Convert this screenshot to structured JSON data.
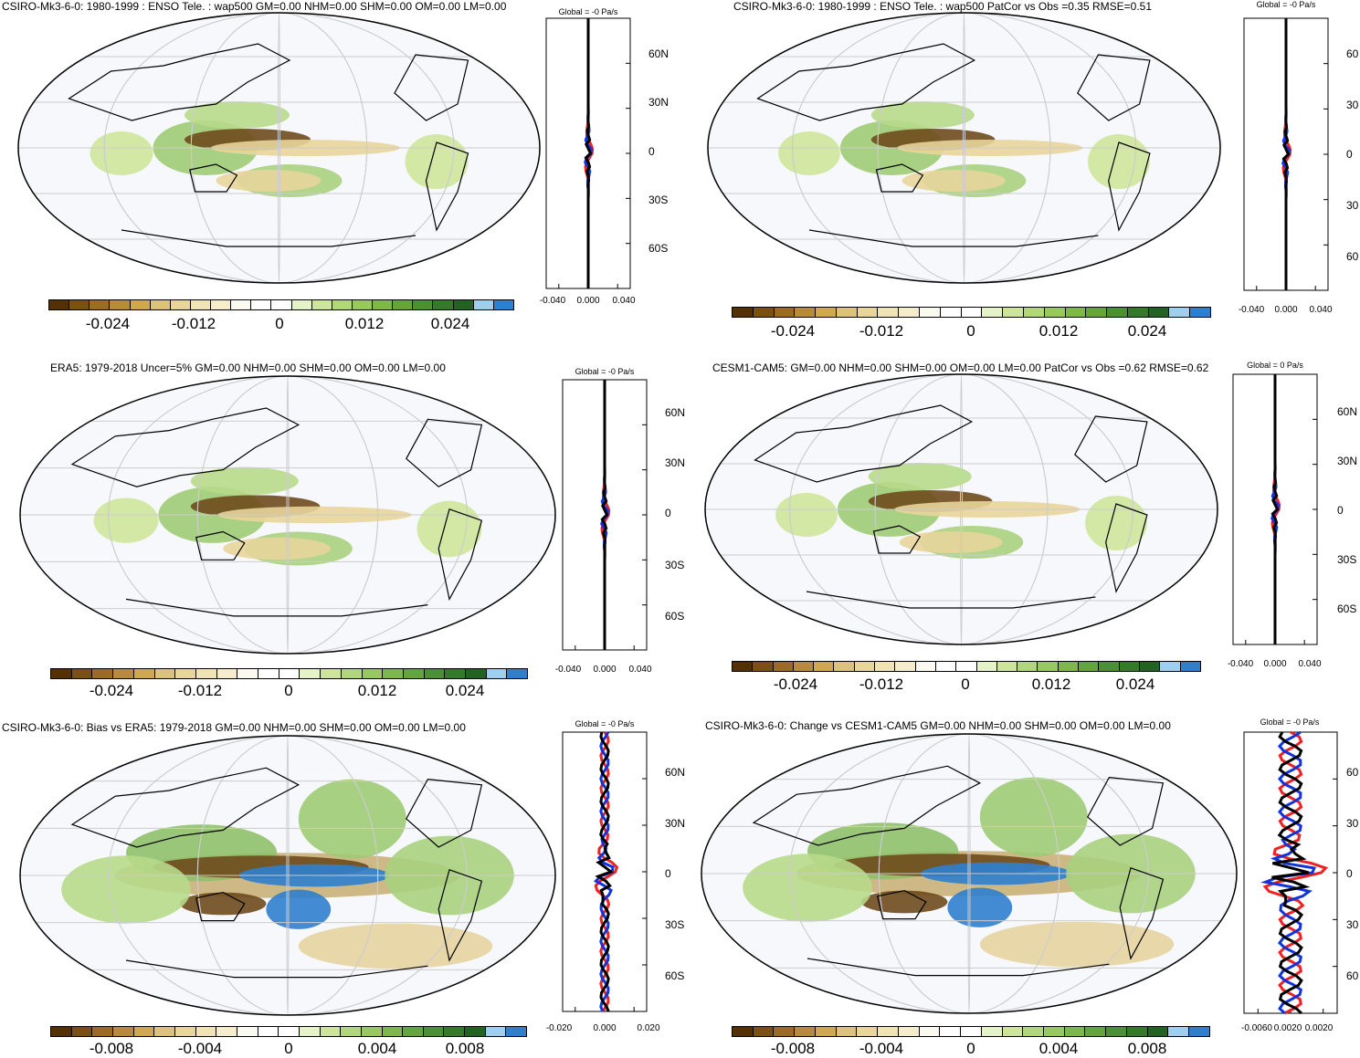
{
  "panels": [
    {
      "title": "CSIRO-Mk3-6-0: 1980-1999 : ENSO Tele. : wap500 GM=0.00 NHM=0.00 SHM=0.00 OM=0.00 LM=0.00",
      "profile_title": "Global = -0 Pa/s",
      "cbar_labels": [
        "-0.024",
        "-0.012",
        "0",
        "0.012",
        "0.024"
      ],
      "lat_labels": [
        "60N",
        "30N",
        "0",
        "30S",
        "60S"
      ],
      "x_ticks": [
        "-0.040",
        "0.000",
        "0.040"
      ]
    },
    {
      "title": "CSIRO-Mk3-6-0: 1980-1999 : ENSO Tele. : wap500 PatCor vs Obs =0.35 RMSE=0.51",
      "profile_title": "Global = -0 Pa/s",
      "cbar_labels": [
        "-0.024",
        "-0.012",
        "0",
        "0.012",
        "0.024"
      ],
      "lat_labels": [
        "60",
        "30",
        "0",
        "30",
        "60"
      ],
      "x_ticks": [
        "-0.040",
        "0.000",
        "0.040"
      ]
    },
    {
      "title": "ERA5: 1979-2018 Uncer=5% GM=0.00 NHM=0.00 SHM=0.00 OM=0.00 LM=0.00",
      "profile_title": "Global = -0 Pa/s",
      "cbar_labels": [
        "-0.024",
        "-0.012",
        "0",
        "0.012",
        "0.024"
      ],
      "lat_labels": [
        "60N",
        "30N",
        "0",
        "30S",
        "60S"
      ],
      "x_ticks": [
        "-0.040",
        "0.000",
        "0.040"
      ]
    },
    {
      "title": "CESM1-CAM5: GM=0.00 NHM=0.00 SHM=0.00 OM=0.00 LM=0.00 PatCor vs Obs =0.62 RMSE=0.62",
      "profile_title": "Global = 0 Pa/s",
      "cbar_labels": [
        "-0.024",
        "-0.012",
        "0",
        "0.012",
        "0.024"
      ],
      "lat_labels": [
        "60N",
        "30N",
        "0",
        "30S",
        "60S"
      ],
      "x_ticks": [
        "-0.040",
        "0.000",
        "0.040"
      ]
    },
    {
      "title": "CSIRO-Mk3-6-0: Bias vs ERA5: 1979-2018 GM=0.00 NHM=0.00 SHM=0.00 OM=0.00 LM=0.00",
      "profile_title": "Global = -0 Pa/s",
      "cbar_labels": [
        "-0.008",
        "-0.004",
        "0",
        "0.004",
        "0.008"
      ],
      "lat_labels": [
        "60N",
        "30N",
        "0",
        "30S",
        "60S"
      ],
      "x_ticks": [
        "-0.020",
        "0.000",
        "0.020"
      ]
    },
    {
      "title": "CSIRO-Mk3-6-0: Change vs CESM1-CAM5 GM=0.00 NHM=0.00 SHM=0.00 OM=0.00 LM=0.00",
      "profile_title": "Global = -0 Pa/s",
      "cbar_labels": [
        "-0.008",
        "-0.004",
        "0",
        "0.004",
        "0.008"
      ],
      "lat_labels": [
        "60",
        "30",
        "0",
        "30",
        "60"
      ],
      "x_ticks": [
        "-0.0060",
        "0.0020",
        "0.0020"
      ]
    }
  ],
  "colors": {
    "palette": [
      "#543005",
      "#7a5113",
      "#9c6b24",
      "#b88a3c",
      "#cfa850",
      "#dcc27a",
      "#e8d59a",
      "#f0e3b4",
      "#f5eccb",
      "#fafaf0",
      "#ffffff",
      "#ffffff",
      "#e6f2c8",
      "#cde59a",
      "#b2d77a",
      "#98c95e",
      "#7eb74a",
      "#64a53c",
      "#4b9032",
      "#357a2a",
      "#226222",
      "#9fcfef",
      "#2f7fcf"
    ],
    "map_background": "#f7f8fc",
    "profile_red": "#ee2222",
    "profile_blue": "#1133dd",
    "profile_black": "#000000"
  }
}
